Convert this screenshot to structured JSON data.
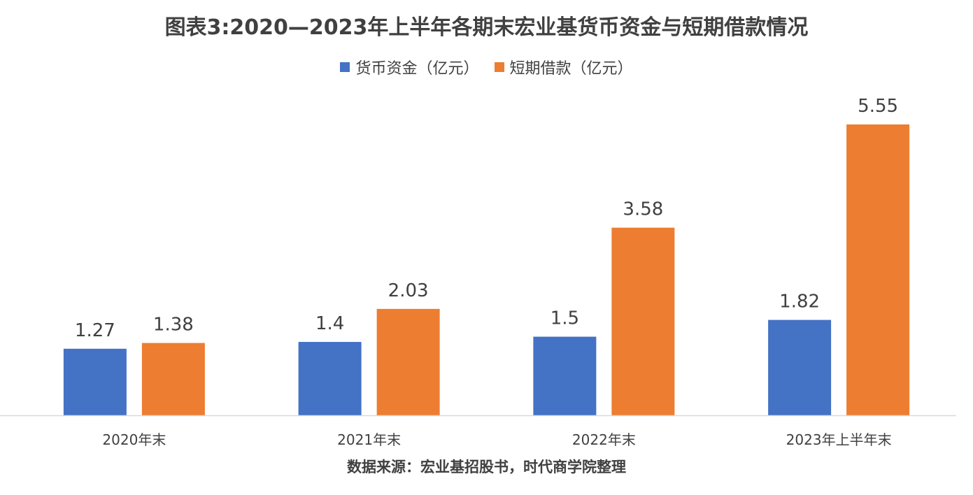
{
  "title": "图表3:2020—2023年上半年各期末宏业基货币资金与短期借款情况",
  "source": "数据来源：宏业基招股书，时代商学院整理",
  "colors": {
    "series1": "#4472C4",
    "series2": "#ED7D31",
    "axis": "#D9D9D9",
    "text": "#404040"
  },
  "chart_data": {
    "type": "bar",
    "title": "图表3:2020—2023年上半年各期末宏业基货币资金与短期借款情况",
    "categories": [
      "2020年末",
      "2021年末",
      "2022年末",
      "2023年上半年末"
    ],
    "series": [
      {
        "name": "货币资金（亿元）",
        "values": [
          1.27,
          1.4,
          1.5,
          1.82
        ],
        "labels": [
          "1.27",
          "1.4",
          "1.5",
          "1.82"
        ]
      },
      {
        "name": "短期借款（亿元）",
        "values": [
          1.38,
          2.03,
          3.58,
          5.55
        ],
        "labels": [
          "1.38",
          "2.03",
          "3.58",
          "5.55"
        ]
      }
    ],
    "xlabel": "",
    "ylabel": "",
    "ylim": [
      0,
      5.55
    ],
    "grid": false,
    "legend_position": "top",
    "data_labels": true
  }
}
